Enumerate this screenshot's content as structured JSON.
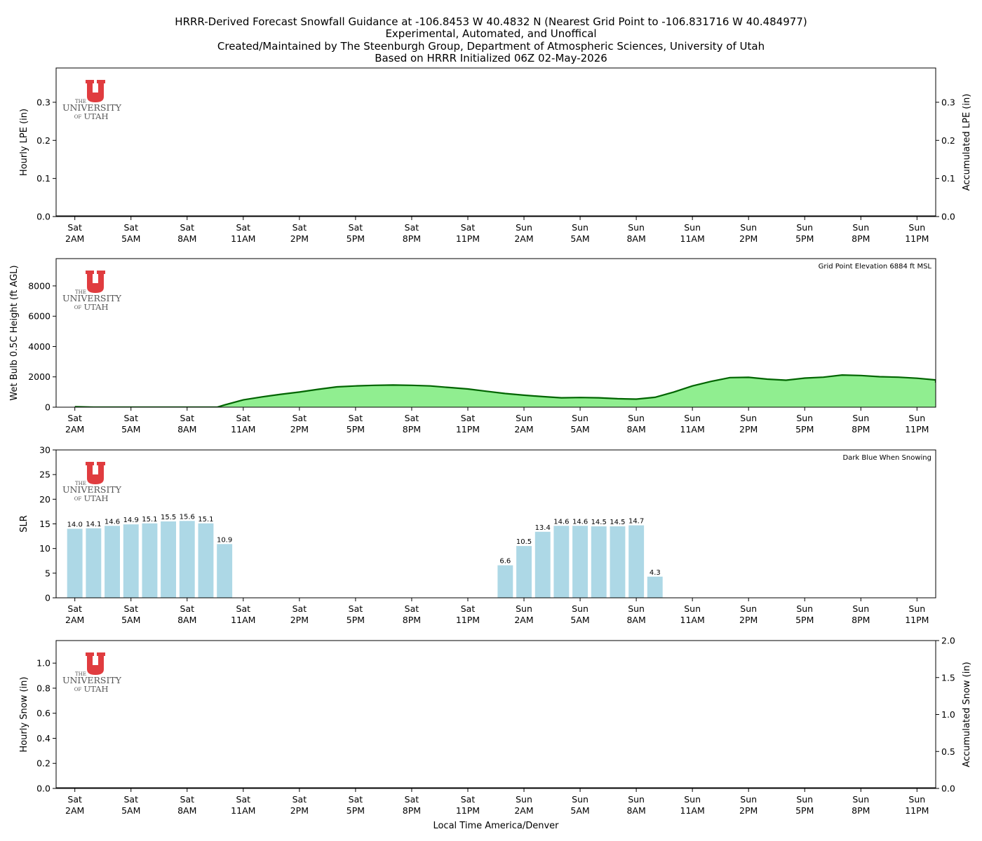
{
  "figure": {
    "title_lines": [
      "HRRR-Derived Forecast Snowfall Guidance at -106.8453 W 40.4832 N (Nearest Grid Point to -106.831716 W 40.484977)",
      "Experimental, Automated, and Unoffical",
      "Created/Maintained by The Steenburgh Group, Department of Atmospheric Sciences, University of Utah",
      "Based on HRRR Initialized 06Z 02-May-2026"
    ],
    "xlabel": "Local Time America/Denver",
    "logo": {
      "the": "THE",
      "university": "UNIVERSITY",
      "of": "OF",
      "utah": "UTAH",
      "color": "#e03c3f"
    }
  },
  "chart_data": [
    {
      "type": "bar",
      "name": "lpe",
      "ylabel": "Hourly LPE (in)",
      "ylabel_right": "Accumulated LPE (in)",
      "ylim": [
        0,
        0.39
      ],
      "yticks": [
        0.0,
        0.1,
        0.2,
        0.3
      ],
      "ytick_labels": [
        "0.0",
        "0.1",
        "0.2",
        "0.3"
      ],
      "right_ylim": [
        0,
        0.39
      ],
      "right_yticks": [
        0.0,
        0.1,
        0.2,
        0.3
      ],
      "right_ytick_labels": [
        "0.0",
        "0.1",
        "0.2",
        "0.3"
      ],
      "hourly_values": [],
      "accumulated_values": []
    },
    {
      "type": "area",
      "name": "wetbulb",
      "ylabel": "Wet Bulb 0.5C Height (ft AGL)",
      "annotation": "Grid Point Elevation 6884 ft MSL",
      "ylim": [
        0,
        9800
      ],
      "yticks": [
        0,
        2000,
        4000,
        6000,
        8000
      ],
      "ytick_labels": [
        "0",
        "2000",
        "4000",
        "6000",
        "8000"
      ],
      "fill_color": "#90ee90",
      "line_color": "#006400",
      "x_hours": [
        1,
        2,
        3,
        4,
        5,
        6,
        7,
        8,
        8.6,
        9,
        10,
        11,
        12,
        13,
        14,
        15,
        16,
        17,
        18,
        19,
        20,
        21,
        22,
        23,
        24,
        25,
        26,
        27,
        28,
        29,
        30,
        31,
        32,
        33,
        34,
        35,
        36,
        37,
        38,
        39,
        40,
        41,
        42,
        43,
        44,
        45,
        46,
        47,
        48,
        49
      ],
      "values": [
        30,
        0,
        0,
        0,
        0,
        0,
        0,
        0,
        0,
        150,
        480,
        680,
        850,
        1000,
        1180,
        1340,
        1400,
        1440,
        1460,
        1440,
        1400,
        1300,
        1200,
        1050,
        900,
        790,
        700,
        620,
        640,
        620,
        560,
        530,
        650,
        1000,
        1400,
        1700,
        1950,
        1970,
        1850,
        1780,
        1920,
        1980,
        2120,
        2090,
        2010,
        1980,
        1910,
        1800,
        1680,
        1620
      ]
    },
    {
      "type": "bar",
      "name": "slr",
      "ylabel": "SLR",
      "annotation": "Dark Blue When Snowing",
      "ylim": [
        0,
        30
      ],
      "yticks": [
        0,
        5,
        10,
        15,
        20,
        25,
        30
      ],
      "ytick_labels": [
        "0",
        "5",
        "10",
        "15",
        "20",
        "25",
        "30"
      ],
      "bar_color": "#add8e6",
      "x_hours": [
        1,
        2,
        3,
        4,
        5,
        6,
        7,
        8,
        9,
        24,
        25,
        26,
        27,
        28,
        29,
        30,
        31,
        32
      ],
      "values": [
        14.0,
        14.1,
        14.6,
        14.9,
        15.1,
        15.5,
        15.6,
        15.1,
        10.9,
        6.6,
        10.5,
        13.4,
        14.6,
        14.6,
        14.5,
        14.5,
        14.7,
        4.3
      ],
      "labels": [
        "14.0",
        "14.1",
        "14.6",
        "14.9",
        "15.1",
        "15.5",
        "15.6",
        "15.1",
        "10.9",
        "6.6",
        "10.5",
        "13.4",
        "14.6",
        "14.6",
        "14.5",
        "14.5",
        "14.7",
        "4.3"
      ]
    },
    {
      "type": "bar",
      "name": "snow",
      "ylabel": "Hourly Snow (in)",
      "ylabel_right": "Accumulated Snow (in)",
      "ylim": [
        0,
        1.18
      ],
      "yticks": [
        0.0,
        0.2,
        0.4,
        0.6,
        0.8,
        1.0
      ],
      "ytick_labels": [
        "0.0",
        "0.2",
        "0.4",
        "0.6",
        "0.8",
        "1.0"
      ],
      "right_ylim": [
        0,
        2.0
      ],
      "right_yticks": [
        0.0,
        0.5,
        1.0,
        1.5,
        2.0
      ],
      "right_ytick_labels": [
        "0.0",
        "0.5",
        "1.0",
        "1.5",
        "2.0"
      ],
      "hourly_values": [],
      "accumulated_values": []
    }
  ],
  "x_axis": {
    "x_range_hours": [
      0.0,
      47.0
    ],
    "tick_hours": [
      1,
      4,
      7,
      10,
      13,
      16,
      19,
      22,
      25,
      28,
      31,
      34,
      37,
      40,
      43,
      46
    ],
    "tick_day": [
      "Sat",
      "Sat",
      "Sat",
      "Sat",
      "Sat",
      "Sat",
      "Sat",
      "Sat",
      "Sun",
      "Sun",
      "Sun",
      "Sun",
      "Sun",
      "Sun",
      "Sun",
      "Sun"
    ],
    "tick_time": [
      "2AM",
      "5AM",
      "8AM",
      "11AM",
      "2PM",
      "5PM",
      "8PM",
      "11PM",
      "2AM",
      "5AM",
      "8AM",
      "11AM",
      "2PM",
      "5PM",
      "8PM",
      "11PM"
    ]
  }
}
